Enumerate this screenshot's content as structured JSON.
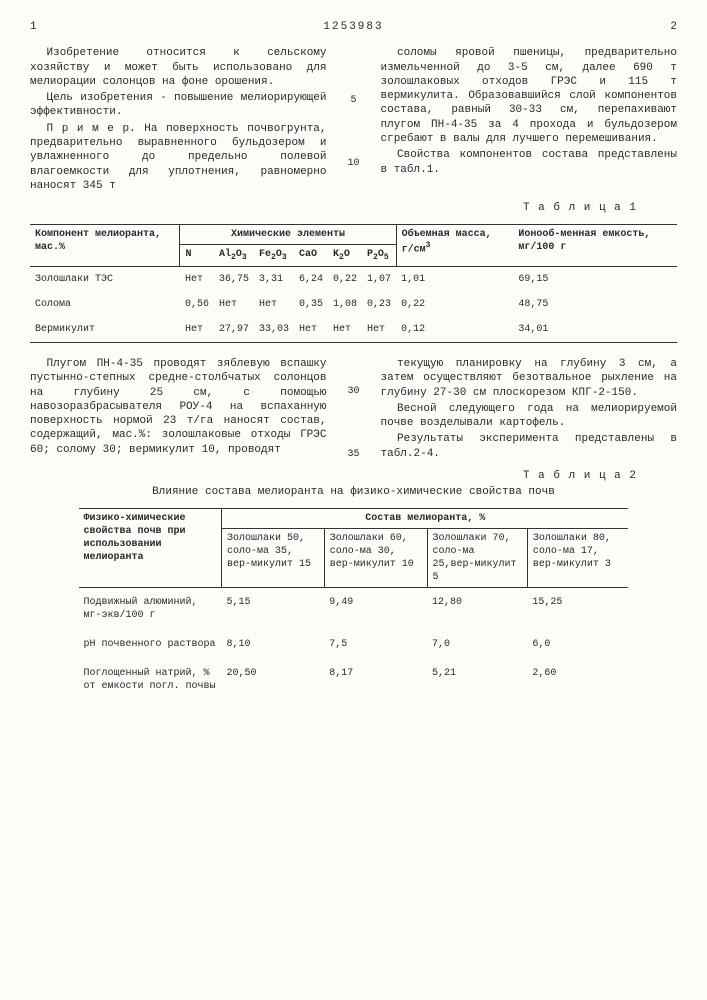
{
  "doc_number": "1253983",
  "page_left": "1",
  "page_right": "2",
  "col1": {
    "p1": "Изобретение относится к сельскому хозяйству и может быть использовано для мелиорации солонцов на фоне орошения.",
    "p2": "Цель изобретения - повышение мелиорирующей эффективности.",
    "p3": "П р и м е р. На поверхность почвогрунта, предварительно выравненного бульдозером и увлажненного до предельно полевой влагоемкости для уплотнения, равномерно наносят 345 т"
  },
  "col2": {
    "p1": "соломы яровой пшеницы, предварительно измельченной до 3-5 см, далее 690 т золошлаковых отходов ГРЭС и 115 т вермикулита. Образовавшийся слой компонентов состава, равный 30-33 см, перепахивают плугом ПН-4-35 за 4 прохода и бульдозером сгребают в валы для лучшего перемешивания.",
    "p2": "Свойства компонентов состава представлены в табл.1."
  },
  "side5": "5",
  "side10": "10",
  "t1": {
    "label": "Т а б л и ц а  1",
    "h_comp": "Компонент мелиоранта, мас.%",
    "h_chem": "Химические элементы",
    "h_mass": "Объемная масса, г/см",
    "h_mass_sup": "3",
    "h_ion": "Ионооб-менная емкость, мг/100 г",
    "sub_N": "N",
    "sub_Al": "Al",
    "sub_Al2": "2",
    "sub_AlO": "O",
    "sub_Al3": "3",
    "sub_Fe": "Fe",
    "sub_Fe2": "2",
    "sub_FeO": "O",
    "sub_Fe3": "3",
    "sub_Ca": "CaO",
    "sub_K": "K",
    "sub_K2": "2",
    "sub_KO": "O",
    "sub_P": "P",
    "sub_P2": "2",
    "sub_PO": "O",
    "sub_P5": "5",
    "rows": [
      {
        "c": "Золошлаки ТЭС",
        "n": "Нет",
        "al": "36,75",
        "fe": "3,31",
        "ca": "6,24",
        "k": "0,22",
        "p": "1,07",
        "m": "1,01",
        "i": "69,15"
      },
      {
        "c": "Солома",
        "n": "0,56",
        "al": "Нет",
        "fe": "Нет",
        "ca": "0,35",
        "k": "1,08",
        "p": "0,23",
        "m": "0,22",
        "i": "48,75"
      },
      {
        "c": "Вермикулит",
        "n": "Нет",
        "al": "27,97",
        "fe": "33,03",
        "ca": "Нет",
        "k": "Нет",
        "p": "Нет",
        "m": "0,12",
        "i": "34,01"
      }
    ]
  },
  "mid_left": {
    "p1": "Плугом ПН-4-35 проводят зяблевую вспашку пустынно-степных средне-столбчатых солонцов на глубину 25 см, с помощью навозоразбрасывателя РОУ-4 на вспаханную поверхность нормой 23 т/га наносят состав, содержащий, мас.%: золошлаковые отходы ГРЭС 60; солому 30; вермикулит 10, проводят"
  },
  "mid_right": {
    "p1": "текущую планировку на глубину 3 см, а затем осуществляют безотвальное рыхление на глубину 27-30 см плоскорезом КПГ-2-150.",
    "p2": "Весной следующего года на мелиорируемой почве возделывали картофель.",
    "p3": "Результаты эксперимента представлены в табл.2-4."
  },
  "side30": "30",
  "side35": "35",
  "t2": {
    "label": "Т а б л и ц а  2",
    "caption": "Влияние состава мелиоранта на физико-химические свойства почв",
    "h_prop": "Физико-химические свойства почв при использовании мелиоранта",
    "h_comp": "Состав мелиоранта, %",
    "sub1": "Золошлаки 50, соло-ма 35, вер-микулит 15",
    "sub2": "Золошлаки 60, соло-ма 30, вер-микулит 10",
    "sub3": "Золошлаки 70, соло-ма 25,вер-микулит 5",
    "sub4": "Золошлаки 80, соло-ма 17, вер-микулит 3",
    "rows": [
      {
        "p": "Подвижный алюминий, мг-экв/100 г",
        "v1": "5,15",
        "v2": "9,49",
        "v3": "12,80",
        "v4": "15,25"
      },
      {
        "p": "pH почвенного раствора",
        "v1": "8,10",
        "v2": "7,5",
        "v3": "7,0",
        "v4": "6,0"
      },
      {
        "p": "Поглощенный натрий, % от емкости погл. почвы",
        "v1": "20,50",
        "v2": "8,17",
        "v3": "5,21",
        "v4": "2,60"
      }
    ]
  }
}
